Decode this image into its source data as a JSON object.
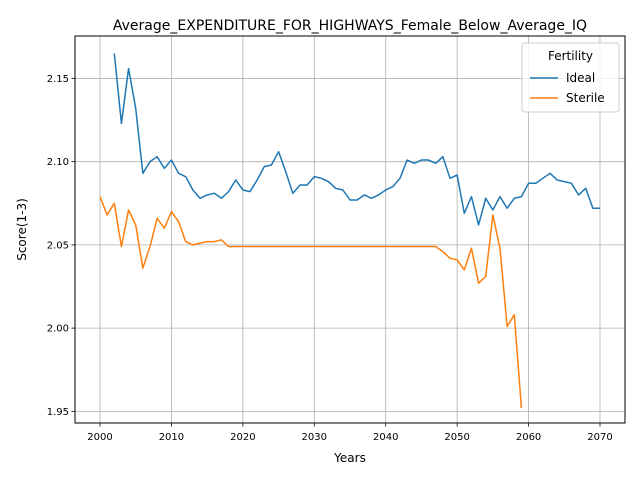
{
  "chart_data": {
    "type": "line",
    "title": "Average_EXPENDITURE_FOR_HIGHWAYS_Female_Below_Average_IQ",
    "xlabel": "Years",
    "ylabel": "Score(1-3)",
    "xlim": [
      1996.5,
      2073.5
    ],
    "ylim": [
      1.943,
      2.1755
    ],
    "xticks": [
      2000,
      2010,
      2020,
      2030,
      2040,
      2050,
      2060,
      2070
    ],
    "yticks": [
      1.95,
      2.0,
      2.05,
      2.1,
      2.15
    ],
    "ytick_labels": [
      "1.95",
      "2.00",
      "2.05",
      "2.10",
      "2.15"
    ],
    "grid": true,
    "legend": {
      "title": "Fertility",
      "placement": "top-right"
    },
    "series": [
      {
        "name": "Ideal",
        "color": "#1f77b4",
        "x": [
          2002,
          2003,
          2004,
          2005,
          2006,
          2007,
          2008,
          2009,
          2010,
          2011,
          2012,
          2013,
          2014,
          2015,
          2016,
          2017,
          2018,
          2019,
          2020,
          2021,
          2022,
          2023,
          2024,
          2025,
          2026,
          2027,
          2028,
          2029,
          2030,
          2031,
          2032,
          2033,
          2034,
          2035,
          2036,
          2037,
          2038,
          2039,
          2040,
          2041,
          2042,
          2043,
          2044,
          2045,
          2046,
          2047,
          2048,
          2049,
          2050,
          2051,
          2052,
          2053,
          2054,
          2055,
          2056,
          2057,
          2058,
          2059,
          2060,
          2061,
          2062,
          2063,
          2064,
          2065,
          2066,
          2067,
          2068,
          2069,
          2070
        ],
        "values": [
          2.165,
          2.123,
          2.156,
          2.132,
          2.093,
          2.1,
          2.103,
          2.096,
          2.101,
          2.093,
          2.091,
          2.083,
          2.078,
          2.08,
          2.081,
          2.078,
          2.082,
          2.089,
          2.083,
          2.082,
          2.089,
          2.097,
          2.098,
          2.106,
          2.094,
          2.081,
          2.086,
          2.086,
          2.091,
          2.09,
          2.088,
          2.084,
          2.083,
          2.077,
          2.077,
          2.08,
          2.078,
          2.08,
          2.083,
          2.085,
          2.09,
          2.101,
          2.099,
          2.101,
          2.101,
          2.099,
          2.103,
          2.09,
          2.092,
          2.069,
          2.079,
          2.062,
          2.078,
          2.071,
          2.079,
          2.072,
          2.078,
          2.079,
          2.087,
          2.087,
          2.09,
          2.093,
          2.089,
          2.088,
          2.087,
          2.08,
          2.084,
          2.072,
          2.072
        ]
      },
      {
        "name": "Sterile",
        "color": "#ff7f0e",
        "x": [
          2000,
          2001,
          2002,
          2003,
          2004,
          2005,
          2006,
          2007,
          2008,
          2009,
          2010,
          2011,
          2012,
          2013,
          2014,
          2015,
          2016,
          2017,
          2018,
          2019,
          2020,
          2021,
          2022,
          2023,
          2024,
          2025,
          2026,
          2027,
          2028,
          2029,
          2030,
          2031,
          2032,
          2033,
          2034,
          2035,
          2036,
          2037,
          2038,
          2039,
          2040,
          2041,
          2042,
          2043,
          2044,
          2045,
          2046,
          2047,
          2048,
          2049,
          2050,
          2051,
          2052,
          2053,
          2054,
          2055,
          2056,
          2057,
          2058,
          2059
        ],
        "values": [
          2.079,
          2.068,
          2.075,
          2.049,
          2.071,
          2.062,
          2.036,
          2.049,
          2.066,
          2.06,
          2.07,
          2.064,
          2.052,
          2.05,
          2.051,
          2.052,
          2.052,
          2.053,
          2.049,
          2.049,
          2.049,
          2.049,
          2.049,
          2.049,
          2.049,
          2.049,
          2.049,
          2.049,
          2.049,
          2.049,
          2.049,
          2.049,
          2.049,
          2.049,
          2.049,
          2.049,
          2.049,
          2.049,
          2.049,
          2.049,
          2.049,
          2.049,
          2.049,
          2.049,
          2.049,
          2.049,
          2.049,
          2.049,
          2.046,
          2.042,
          2.041,
          2.035,
          2.048,
          2.027,
          2.031,
          2.068,
          2.048,
          2.001,
          2.008,
          1.952
        ]
      }
    ]
  }
}
